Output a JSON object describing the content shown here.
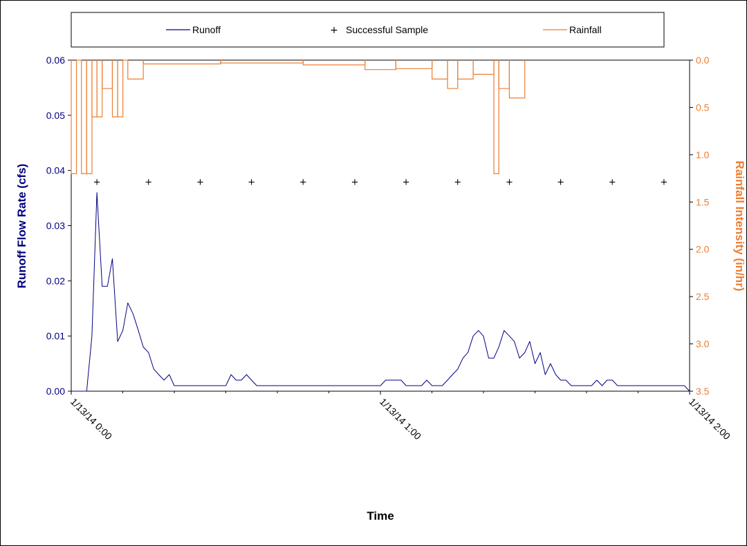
{
  "chart_data": {
    "type": "line",
    "title": "",
    "xlabel": "Time",
    "ylabel_left": "Runoff Flow Rate (cfs)",
    "ylabel_right": "Rainfall Intensity (in/hr)",
    "x_ticks": [
      "1/13/14 0:00",
      "1/13/14 1:00",
      "1/13/14 2:00"
    ],
    "x_unit": "hours after 1/13/14 0:00",
    "xlim": [
      0,
      2
    ],
    "y_left": {
      "lim": [
        0,
        0.06
      ],
      "ticks": [
        "0.00",
        "0.01",
        "0.02",
        "0.03",
        "0.04",
        "0.05",
        "0.06"
      ]
    },
    "y_right": {
      "lim": [
        0,
        3.5
      ],
      "inverted": true,
      "ticks": [
        "0.0",
        "0.5",
        "1.0",
        "1.5",
        "2.0",
        "2.5",
        "3.0",
        "3.5"
      ]
    },
    "legend": {
      "position": "top",
      "entries": [
        "Runoff",
        "Successful Sample",
        "Rainfall"
      ]
    },
    "colors": {
      "runoff": "#000080",
      "sample": "#000000",
      "rainfall": "#ED7D31"
    },
    "series": [
      {
        "name": "Runoff",
        "axis": "left",
        "x": [
          0,
          0.05,
          0.067,
          0.083,
          0.1,
          0.117,
          0.133,
          0.15,
          0.167,
          0.183,
          0.2,
          0.217,
          0.233,
          0.25,
          0.267,
          0.283,
          0.3,
          0.317,
          0.333,
          0.35,
          0.367,
          0.383,
          0.4,
          0.417,
          0.433,
          0.45,
          0.467,
          0.483,
          0.5,
          0.517,
          0.533,
          0.55,
          0.567,
          0.583,
          0.6,
          0.617,
          0.633,
          0.65,
          0.667,
          0.683,
          0.7,
          0.717,
          0.733,
          0.75,
          0.767,
          0.783,
          0.8,
          0.817,
          0.833,
          0.85,
          0.867,
          0.883,
          0.9,
          0.917,
          0.933,
          0.95,
          0.967,
          0.983,
          1.0,
          1.017,
          1.033,
          1.05,
          1.067,
          1.083,
          1.1,
          1.117,
          1.133,
          1.15,
          1.167,
          1.183,
          1.2,
          1.217,
          1.233,
          1.25,
          1.267,
          1.283,
          1.3,
          1.317,
          1.333,
          1.35,
          1.367,
          1.383,
          1.4,
          1.417,
          1.433,
          1.45,
          1.467,
          1.483,
          1.5,
          1.517,
          1.533,
          1.55,
          1.567,
          1.583,
          1.6,
          1.617,
          1.633,
          1.65,
          1.667,
          1.683,
          1.7,
          1.717,
          1.733,
          1.75,
          1.767,
          1.783,
          1.8,
          1.817,
          1.833,
          1.85,
          1.867,
          1.883,
          1.9,
          1.917,
          1.933,
          1.95,
          1.967,
          1.983,
          2.0
        ],
        "values": [
          0,
          0,
          0.01,
          0.036,
          0.019,
          0.019,
          0.024,
          0.009,
          0.011,
          0.016,
          0.014,
          0.011,
          0.008,
          0.007,
          0.004,
          0.003,
          0.002,
          0.003,
          0.001,
          0.001,
          0.001,
          0.001,
          0.001,
          0.001,
          0.001,
          0.001,
          0.001,
          0.001,
          0.001,
          0.003,
          0.002,
          0.002,
          0.003,
          0.002,
          0.001,
          0.001,
          0.001,
          0.001,
          0.001,
          0.001,
          0.001,
          0.001,
          0.001,
          0.001,
          0.001,
          0.001,
          0.001,
          0.001,
          0.001,
          0.001,
          0.001,
          0.001,
          0.001,
          0.001,
          0.001,
          0.001,
          0.001,
          0.001,
          0.001,
          0.002,
          0.002,
          0.002,
          0.002,
          0.001,
          0.001,
          0.001,
          0.001,
          0.002,
          0.001,
          0.001,
          0.001,
          0.002,
          0.003,
          0.004,
          0.006,
          0.007,
          0.01,
          0.011,
          0.01,
          0.006,
          0.006,
          0.008,
          0.011,
          0.01,
          0.009,
          0.006,
          0.007,
          0.009,
          0.005,
          0.007,
          0.003,
          0.005,
          0.003,
          0.002,
          0.002,
          0.001,
          0.001,
          0.001,
          0.001,
          0.001,
          0.002,
          0.001,
          0.002,
          0.002,
          0.001,
          0.001,
          0.001,
          0.001,
          0.001,
          0.001,
          0.001,
          0.001,
          0.001,
          0.001,
          0.001,
          0.001,
          0.001,
          0.001,
          0
        ]
      },
      {
        "name": "Successful Sample",
        "axis": "left",
        "x": [
          0.083,
          0.25,
          0.417,
          0.583,
          0.75,
          0.917,
          1.083,
          1.25,
          1.417,
          1.583,
          1.75,
          1.917
        ],
        "values": [
          0.038,
          0.038,
          0.038,
          0.038,
          0.038,
          0.038,
          0.038,
          0.038,
          0.038,
          0.038,
          0.038,
          0.038
        ]
      },
      {
        "name": "Rainfall",
        "axis": "right",
        "steps": [
          {
            "x0": 0.0,
            "x1": 0.017,
            "value": 1.2
          },
          {
            "x0": 0.017,
            "x1": 0.033,
            "value": 0.0
          },
          {
            "x0": 0.033,
            "x1": 0.05,
            "value": 1.2
          },
          {
            "x0": 0.05,
            "x1": 0.067,
            "value": 1.2
          },
          {
            "x0": 0.067,
            "x1": 0.083,
            "value": 0.6
          },
          {
            "x0": 0.083,
            "x1": 0.1,
            "value": 0.6
          },
          {
            "x0": 0.1,
            "x1": 0.133,
            "value": 0.3
          },
          {
            "x0": 0.133,
            "x1": 0.15,
            "value": 0.6
          },
          {
            "x0": 0.15,
            "x1": 0.167,
            "value": 0.6
          },
          {
            "x0": 0.167,
            "x1": 0.183,
            "value": 0.0
          },
          {
            "x0": 0.183,
            "x1": 0.233,
            "value": 0.2
          },
          {
            "x0": 0.233,
            "x1": 0.483,
            "value": 0.04
          },
          {
            "x0": 0.483,
            "x1": 0.75,
            "value": 0.03
          },
          {
            "x0": 0.75,
            "x1": 0.95,
            "value": 0.05
          },
          {
            "x0": 0.95,
            "x1": 1.05,
            "value": 0.1
          },
          {
            "x0": 1.05,
            "x1": 1.167,
            "value": 0.09
          },
          {
            "x0": 1.167,
            "x1": 1.217,
            "value": 0.2
          },
          {
            "x0": 1.217,
            "x1": 1.25,
            "value": 0.3
          },
          {
            "x0": 1.25,
            "x1": 1.3,
            "value": 0.2
          },
          {
            "x0": 1.3,
            "x1": 1.367,
            "value": 0.15
          },
          {
            "x0": 1.367,
            "x1": 1.383,
            "value": 1.2
          },
          {
            "x0": 1.383,
            "x1": 1.417,
            "value": 0.3
          },
          {
            "x0": 1.417,
            "x1": 1.467,
            "value": 0.4
          }
        ]
      }
    ]
  }
}
